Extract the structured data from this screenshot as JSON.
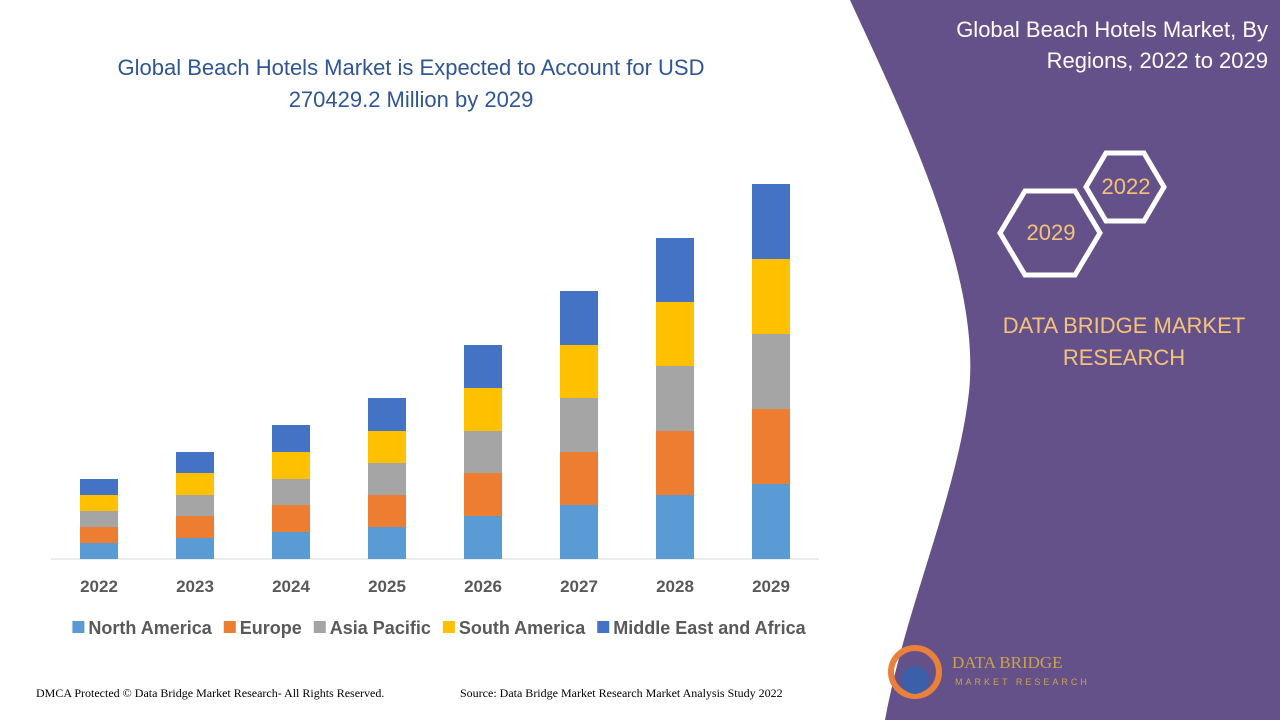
{
  "chart_data": {
    "type": "stacked_bar",
    "title": "Global Beach Hotels Market is Expected to Account for USD 270429.2 Million by 2029",
    "categories": [
      "2022",
      "2023",
      "2024",
      "2025",
      "2026",
      "2027",
      "2028",
      "2029"
    ],
    "series": [
      {
        "name": "North America",
        "color": "#5b9bd5",
        "values": [
          16,
          21,
          27,
          32,
          43,
          54,
          64,
          75
        ]
      },
      {
        "name": "Europe",
        "color": "#ed7d31",
        "values": [
          16,
          22,
          27,
          32,
          43,
          53,
          64,
          75
        ]
      },
      {
        "name": "Asia Pacific",
        "color": "#a5a5a5",
        "values": [
          16,
          21,
          26,
          32,
          42,
          54,
          65,
          75
        ]
      },
      {
        "name": "South America",
        "color": "#ffc000",
        "values": [
          16,
          22,
          27,
          32,
          43,
          53,
          64,
          75
        ]
      },
      {
        "name": "Middle East and Africa",
        "color": "#4472c4",
        "values": [
          16,
          21,
          27,
          33,
          43,
          54,
          64,
          75
        ]
      }
    ]
  },
  "panel": {
    "title": "Global Beach Hotels Market, By Regions, 2022 to 2029",
    "year_start": "2022",
    "year_end": "2029",
    "brand_lines": [
      "DATA BRIDGE MARKET",
      "RESEARCH"
    ],
    "logo_name": "DATA BRIDGE",
    "logo_sub": "MARKET RESEARCH"
  },
  "footer": {
    "left": "DMCA Protected © Data Bridge Market Research- All Rights Reserved.",
    "right": "Source: Data Bridge Market Research Market Analysis Study 2022"
  }
}
